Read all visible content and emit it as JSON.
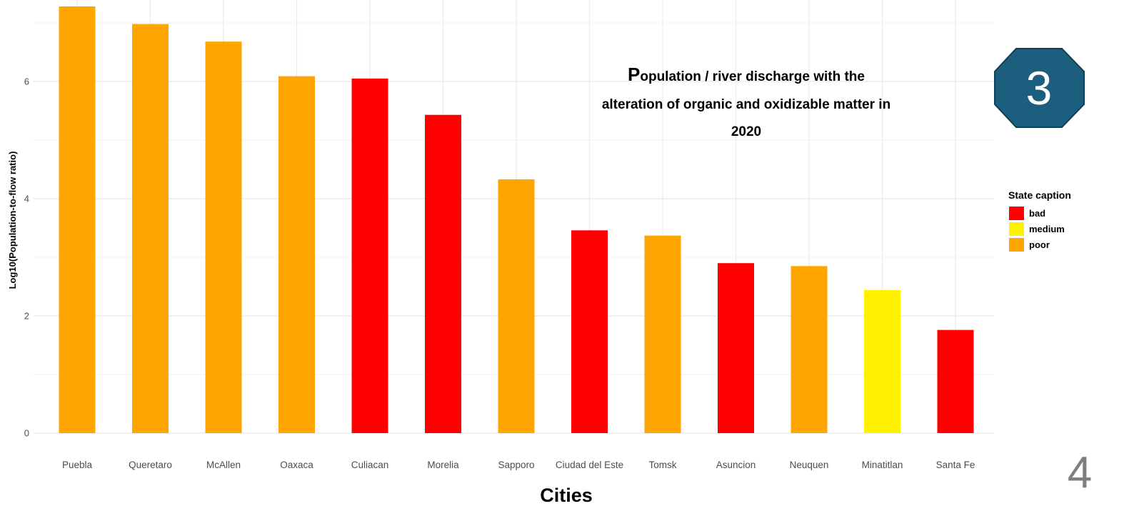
{
  "chart_data": {
    "type": "bar",
    "title": "Population / river discharge with the alteration of organic and oxidizable matter in 2020",
    "xlabel": "Cities",
    "ylabel": "Log10(Population-to-flow ratio)",
    "ylim": [
      0,
      7.35
    ],
    "yticks": [
      0,
      2,
      4,
      6
    ],
    "grid": true,
    "legend": {
      "title": "State caption",
      "placement": "right",
      "items": [
        {
          "label": "bad",
          "color": "#ff0000"
        },
        {
          "label": "medium",
          "color": "#fff000"
        },
        {
          "label": "poor",
          "color": "#ffa500"
        }
      ]
    },
    "categories": [
      "Puebla",
      "Queretaro",
      "McAllen",
      "Oaxaca",
      "Culiacan",
      "Morelia",
      "Sapporo",
      "Ciudad del Este",
      "Tomsk",
      "Asuncion",
      "Neuquen",
      "Minatitlan",
      "Santa Fe"
    ],
    "values": [
      7.28,
      6.98,
      6.68,
      6.09,
      6.05,
      5.43,
      4.33,
      3.46,
      3.37,
      2.9,
      2.85,
      2.44,
      1.76
    ],
    "states": [
      "poor",
      "poor",
      "poor",
      "poor",
      "bad",
      "bad",
      "poor",
      "bad",
      "poor",
      "bad",
      "poor",
      "medium",
      "bad"
    ]
  },
  "badge": {
    "number": "3",
    "color": "#1b5e7e"
  },
  "page_number": "4"
}
